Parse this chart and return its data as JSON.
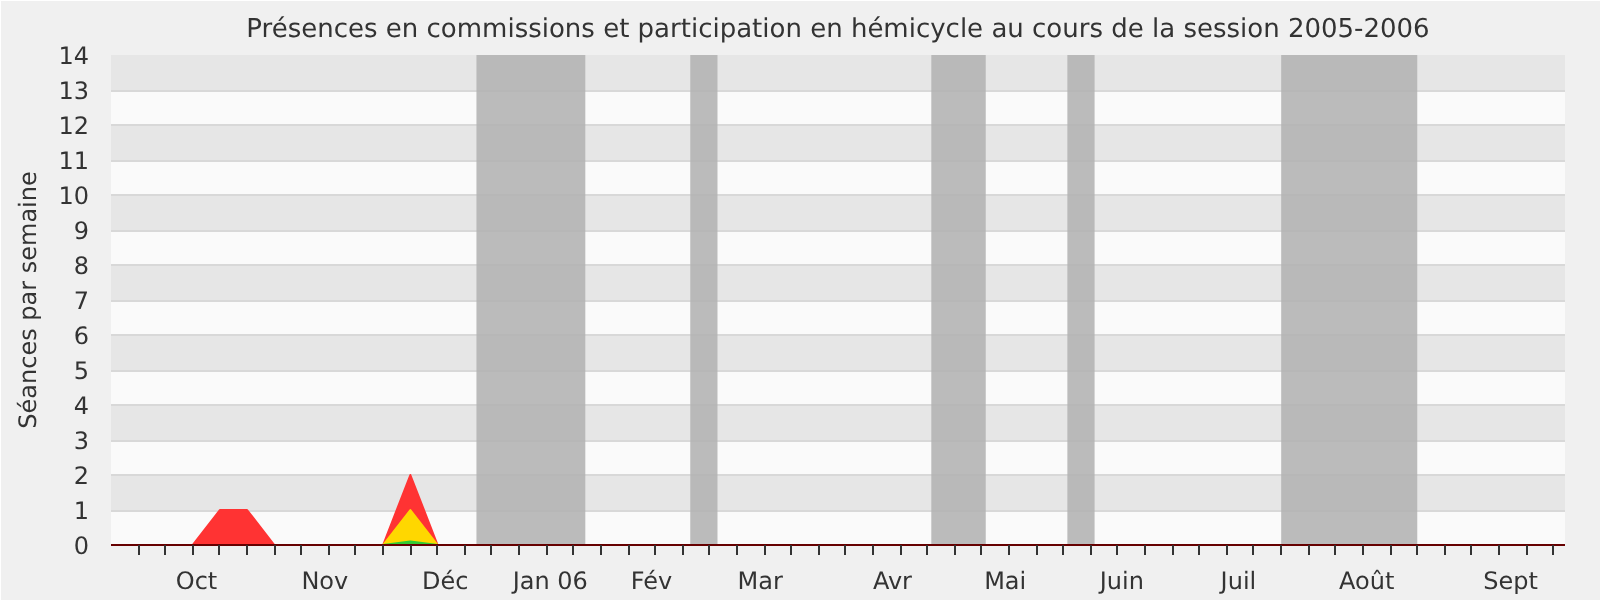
{
  "chart_data": {
    "type": "area",
    "title": "Présences en commissions et participation en hémicycle au cours de la session 2005-2006",
    "ylabel": "Séances par semaine",
    "x": [
      "2005-09-26",
      "2005-10-03",
      "2005-10-10",
      "2005-10-17",
      "2005-10-24",
      "2005-10-31",
      "2005-11-07",
      "2005-11-14",
      "2005-11-21",
      "2005-11-28",
      "2005-12-05",
      "2005-12-12",
      "2005-12-19",
      "2005-12-26",
      "2006-01-02",
      "2006-01-09",
      "2006-01-16",
      "2006-01-23",
      "2006-01-30",
      "2006-02-06",
      "2006-02-13",
      "2006-02-20",
      "2006-02-27",
      "2006-03-06",
      "2006-03-13",
      "2006-03-20",
      "2006-03-27",
      "2006-04-03",
      "2006-04-10",
      "2006-04-17",
      "2006-04-24",
      "2006-05-01",
      "2006-05-08",
      "2006-05-15",
      "2006-05-22",
      "2006-05-29",
      "2006-06-05",
      "2006-06-12",
      "2006-06-19",
      "2006-06-26",
      "2006-07-03",
      "2006-07-10",
      "2006-07-17",
      "2006-07-24",
      "2006-07-31",
      "2006-08-07",
      "2006-08-14",
      "2006-08-21",
      "2006-08-28",
      "2006-09-04",
      "2006-09-11",
      "2006-09-18",
      "2006-09-25"
    ],
    "series": [
      {
        "color": "#ff3333",
        "values": [
          0,
          0,
          0,
          1,
          1,
          0,
          0,
          0,
          0,
          0,
          2,
          0,
          0,
          0,
          0,
          0,
          0,
          0,
          0,
          0,
          0,
          0,
          0,
          0,
          0,
          0,
          0,
          0,
          0,
          0,
          0,
          0,
          0,
          0,
          0,
          0,
          0,
          0,
          0,
          0,
          0,
          0,
          0,
          0,
          0,
          0,
          0,
          0,
          0,
          0,
          0,
          0,
          0
        ]
      },
      {
        "color": "#ffd700",
        "values": [
          0,
          0,
          0,
          0,
          0,
          0,
          0,
          0,
          0,
          0,
          1,
          0,
          0,
          0,
          0,
          0,
          0,
          0,
          0,
          0,
          0,
          0,
          0,
          0,
          0,
          0,
          0,
          0,
          0,
          0,
          0,
          0,
          0,
          0,
          0,
          0,
          0,
          0,
          0,
          0,
          0,
          0,
          0,
          0,
          0,
          0,
          0,
          0,
          0,
          0,
          0,
          0,
          0
        ]
      },
      {
        "color": "#33cc33",
        "values": [
          0,
          0,
          0,
          0,
          0,
          0,
          0,
          0,
          0,
          0,
          0.1,
          0,
          0,
          0,
          0,
          0,
          0,
          0,
          0,
          0,
          0,
          0,
          0,
          0,
          0,
          0,
          0,
          0,
          0,
          0,
          0,
          0,
          0,
          0,
          0,
          0,
          0,
          0,
          0,
          0,
          0,
          0,
          0,
          0,
          0,
          0,
          0,
          0,
          0,
          0,
          0,
          0,
          0
        ]
      }
    ],
    "bands": [
      {
        "axis": "x",
        "from": "2005-12-22",
        "to": "2006-01-19",
        "color": "#b4b4b4"
      },
      {
        "axis": "x",
        "from": "2006-02-15",
        "to": "2006-02-22",
        "color": "#b4b4b4"
      },
      {
        "axis": "x",
        "from": "2006-04-18",
        "to": "2006-05-02",
        "color": "#b4b4b4"
      },
      {
        "axis": "x",
        "from": "2006-05-23",
        "to": "2006-05-30",
        "color": "#b4b4b4"
      },
      {
        "axis": "x",
        "from": "2006-07-17",
        "to": "2006-08-21",
        "color": "#b4b4b4"
      }
    ],
    "xlim": [
      "2005-09-19",
      "2006-09-28"
    ],
    "xticks": [
      {
        "value": "2005-10-11",
        "label": "Oct"
      },
      {
        "value": "2005-11-13",
        "label": "Nov"
      },
      {
        "value": "2005-12-14",
        "label": "Déc"
      },
      {
        "value": "2006-01-10",
        "label": "Jan 06"
      },
      {
        "value": "2006-02-05",
        "label": "Fév"
      },
      {
        "value": "2006-03-05",
        "label": "Mar"
      },
      {
        "value": "2006-04-08",
        "label": "Avr"
      },
      {
        "value": "2006-05-07",
        "label": "Mai"
      },
      {
        "value": "2006-06-06",
        "label": "Juin"
      },
      {
        "value": "2006-07-06",
        "label": "Juil"
      },
      {
        "value": "2006-08-08",
        "label": "Août"
      },
      {
        "value": "2006-09-14",
        "label": "Sept"
      }
    ],
    "ylim": [
      0,
      14
    ],
    "yticks": [
      0,
      1,
      2,
      3,
      4,
      5,
      6,
      7,
      8,
      9,
      10,
      11,
      12,
      13,
      14
    ],
    "grid": "y"
  }
}
